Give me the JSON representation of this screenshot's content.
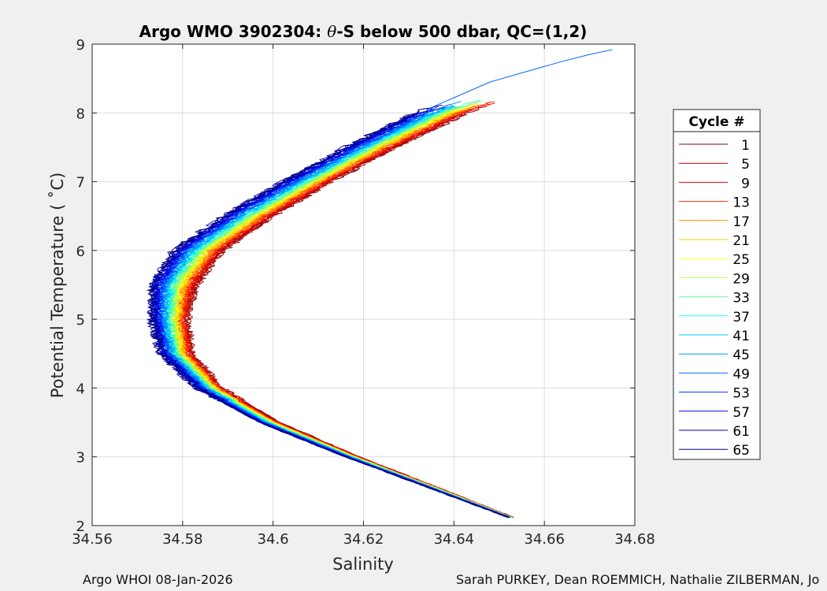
{
  "chart_data": {
    "type": "line",
    "title": "Argo WMO 3902304: θ-S below 500 dbar,  QC=(1,2)",
    "title_prefix": "Argo WMO 3902304: ",
    "title_theta": "θ",
    "title_suffix": "-S below 500 dbar,  QC=(1,2)",
    "xlabel": "Salinity",
    "ylabel": "Potential Temperature ( ˚C)",
    "xlim": [
      34.56,
      34.68
    ],
    "ylim": [
      2,
      9
    ],
    "xticks": [
      "34.56",
      "34.58",
      "34.6",
      "34.62",
      "34.64",
      "34.66",
      "34.68"
    ],
    "yticks": [
      "2",
      "3",
      "4",
      "5",
      "6",
      "7",
      "8",
      "9"
    ],
    "grid": true,
    "legend_title": "Cycle #",
    "legend_position": "right",
    "legend": [
      {
        "label": "1",
        "color": "#800000"
      },
      {
        "label": "5",
        "color": "#b30000"
      },
      {
        "label": "9",
        "color": "#e60000"
      },
      {
        "label": "13",
        "color": "#ff3300"
      },
      {
        "label": "17",
        "color": "#ff8000"
      },
      {
        "label": "21",
        "color": "#ffcc00"
      },
      {
        "label": "25",
        "color": "#ffff00"
      },
      {
        "label": "29",
        "color": "#b3ff4d"
      },
      {
        "label": "33",
        "color": "#66ff99"
      },
      {
        "label": "37",
        "color": "#1affe6"
      },
      {
        "label": "41",
        "color": "#00ccff"
      },
      {
        "label": "45",
        "color": "#0099ff"
      },
      {
        "label": "49",
        "color": "#0066ff"
      },
      {
        "label": "53",
        "color": "#0033ff"
      },
      {
        "label": "57",
        "color": "#0000e6"
      },
      {
        "label": "61",
        "color": "#0000b3"
      },
      {
        "label": "65",
        "color": "#000080"
      }
    ],
    "series_shape": {
      "theta": [
        2.12,
        2.5,
        3.0,
        3.5,
        4.0,
        4.5,
        5.0,
        5.5,
        6.0,
        6.5,
        7.0,
        7.5,
        8.0,
        8.2
      ],
      "salinity_base": [
        34.653,
        34.638,
        34.618,
        34.6,
        34.587,
        34.58,
        34.578,
        34.579,
        34.584,
        34.594,
        34.606,
        34.619,
        34.633,
        34.641
      ],
      "salinity_shift_first_cycle": [
        0.0,
        0.0005,
        0.001,
        0.0015,
        0.0015,
        0.002,
        0.003,
        0.004,
        0.005,
        0.006,
        0.007,
        0.008,
        0.01,
        0.012
      ],
      "salinity_shift_last_cycle": [
        -0.001,
        -0.0015,
        -0.002,
        -0.003,
        -0.004,
        -0.005,
        -0.005,
        -0.006,
        -0.006,
        -0.005,
        -0.004,
        -0.003,
        -0.002,
        -0.001
      ]
    },
    "outlier_segment": {
      "salinity": [
        34.634,
        34.641,
        34.648,
        34.656,
        34.664,
        34.67,
        34.675
      ],
      "theta": [
        8.05,
        8.25,
        8.45,
        8.6,
        8.75,
        8.85,
        8.92
      ],
      "color": "#0066ff"
    }
  },
  "footer": {
    "left": "Argo WHOI 08-Jan-2026",
    "right": "Sarah PURKEY, Dean ROEMMICH, Nathalie ZILBERMAN, Jo"
  }
}
